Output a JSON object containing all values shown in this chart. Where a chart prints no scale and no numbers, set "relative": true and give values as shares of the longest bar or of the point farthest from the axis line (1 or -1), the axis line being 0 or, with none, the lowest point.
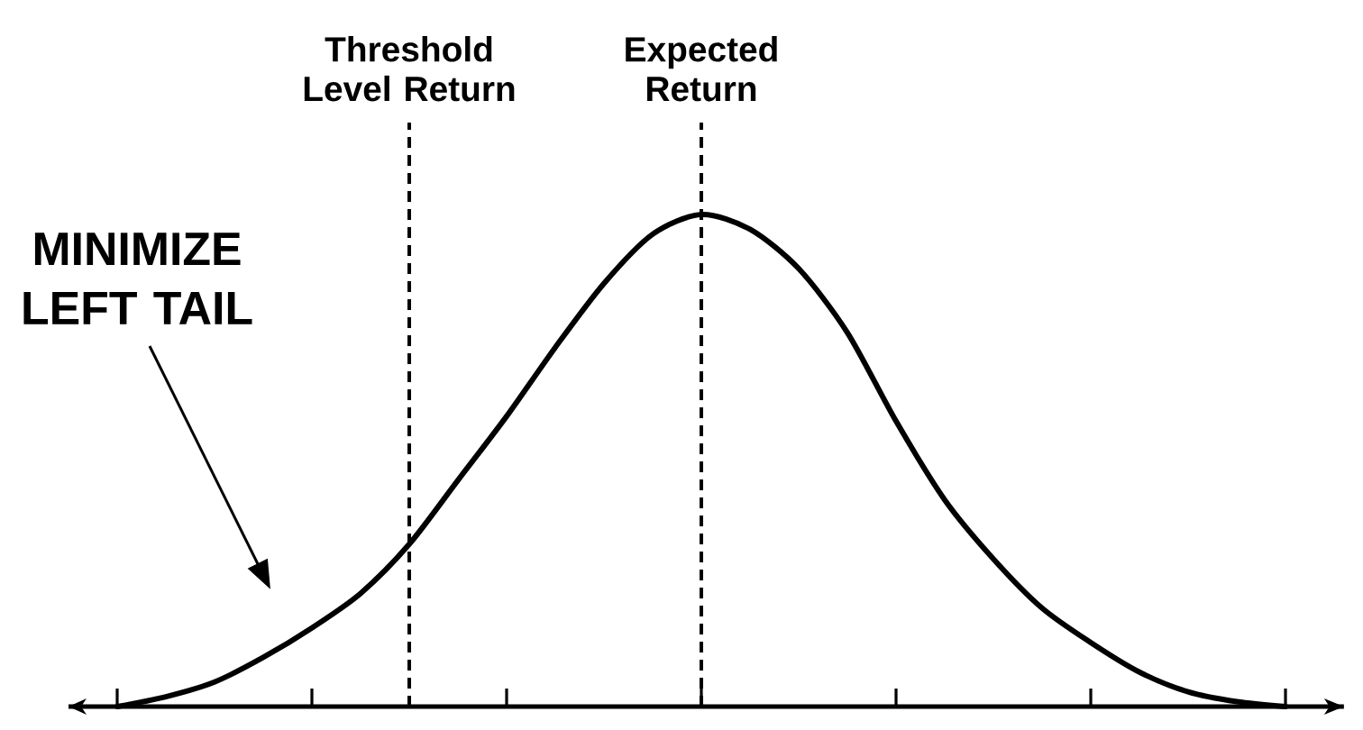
{
  "chart_data": {
    "type": "line",
    "relative": true,
    "categories": [
      null,
      null,
      null,
      null,
      null,
      null,
      null,
      null,
      null,
      null,
      null,
      null,
      null,
      null,
      null,
      null,
      null,
      null,
      null,
      null,
      null,
      null,
      null,
      null,
      null
    ],
    "values": [
      0,
      0.02,
      0.05,
      0.1,
      0.16,
      0.23,
      0.33,
      0.46,
      0.59,
      0.73,
      0.86,
      0.96,
      1,
      0.97,
      0.89,
      0.76,
      0.58,
      0.42,
      0.3,
      0.2,
      0.13,
      0.07,
      0.03,
      0.01,
      0
    ],
    "color": "#000000",
    "line_style": "solid",
    "annotations": [
      "Threshold Level Return",
      "Expected Return",
      "MINIMIZE LEFT TAIL"
    ]
  }
}
